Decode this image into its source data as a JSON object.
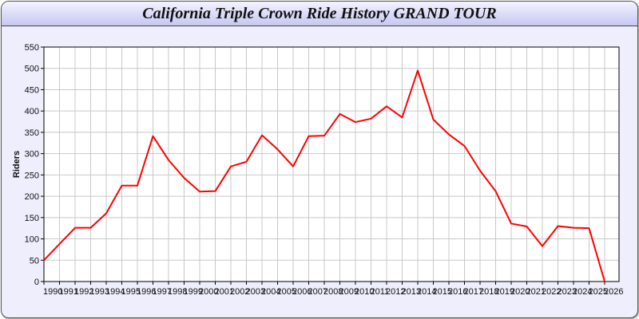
{
  "chart_data": {
    "type": "line",
    "title": "California Triple Crown Ride History GRAND TOUR",
    "xlabel": "",
    "ylabel": "Riders",
    "ylim": [
      0,
      550
    ],
    "yticks": [
      0,
      50,
      100,
      150,
      200,
      250,
      300,
      350,
      400,
      450,
      500,
      550
    ],
    "grid": true,
    "line_color": "#ff0000",
    "x": [
      1990,
      1991,
      1992,
      1993,
      1994,
      1995,
      1996,
      1997,
      1998,
      1999,
      2000,
      2001,
      2002,
      2003,
      2004,
      2005,
      2006,
      2007,
      2008,
      2009,
      2010,
      2011,
      2012,
      2013,
      2014,
      2015,
      2016,
      2017,
      2018,
      2019,
      2020,
      2021,
      2022,
      2023,
      2024,
      2025,
      2026
    ],
    "series": [
      {
        "values": [
          50,
          88,
          126,
          126,
          160,
          225,
          225,
          341,
          285,
          243,
          211,
          212,
          270,
          281,
          343,
          310,
          270,
          341,
          342,
          393,
          374,
          382,
          411,
          385,
          495,
          380,
          345,
          318,
          260,
          212,
          136,
          129,
          83,
          130,
          126,
          125,
          0
        ]
      }
    ]
  }
}
